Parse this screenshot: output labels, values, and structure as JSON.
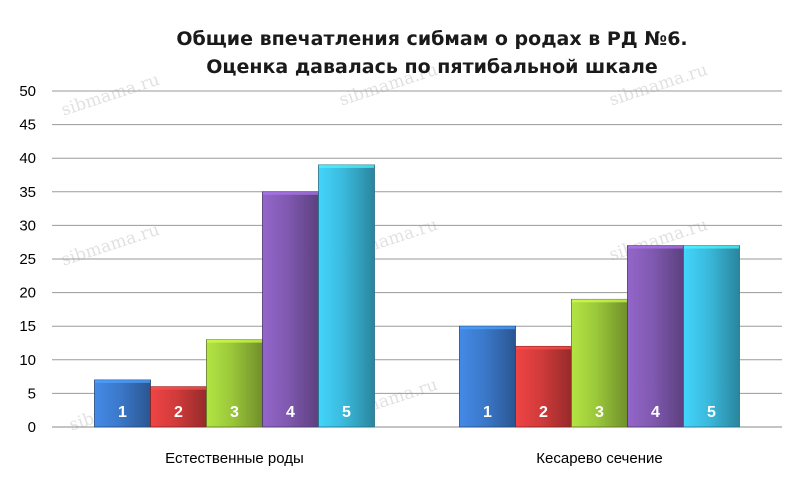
{
  "chart_data": {
    "type": "bar",
    "title": "Общие впечатления сибмам о родах в РД №6.",
    "subtitle": "Оценка давалась по пятибальной шкале",
    "categories": [
      "Естественные роды",
      "Кесарево сечение"
    ],
    "series": [
      {
        "name": "1",
        "values": [
          7,
          15
        ],
        "color": "#3b78c9"
      },
      {
        "name": "2",
        "values": [
          6,
          12
        ],
        "color": "#d13b3b"
      },
      {
        "name": "3",
        "values": [
          13,
          19
        ],
        "color": "#9bc73a"
      },
      {
        "name": "4",
        "values": [
          35,
          27
        ],
        "color": "#8059b0"
      },
      {
        "name": "5",
        "values": [
          39,
          27
        ],
        "color": "#3ab9dc"
      }
    ],
    "ylim": [
      0,
      50
    ],
    "yticks": [
      0,
      5,
      10,
      15,
      20,
      25,
      30,
      35,
      40,
      45,
      50
    ],
    "grid": true,
    "legend": "none",
    "xlabel": "",
    "ylabel": ""
  },
  "watermark": "sibmama.ru"
}
